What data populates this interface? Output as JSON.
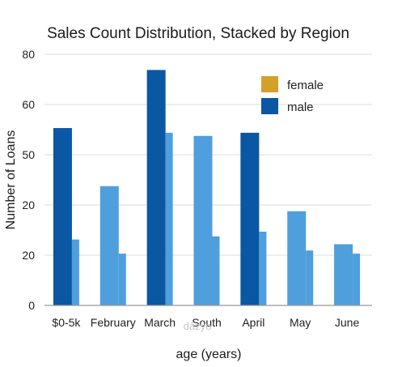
{
  "chart_data": {
    "type": "bar",
    "title": "Sales Count Distribution, Stacked by Region",
    "xlabel": "age (years)",
    "ylabel": "Number of Loans",
    "y_tick_labels": [
      "0",
      "20",
      "20",
      "50",
      "60",
      "80"
    ],
    "ylim": [
      0,
      80
    ],
    "categories": [
      "$0-5k",
      "February",
      "March",
      "South",
      "April",
      "May",
      "June"
    ],
    "series": [
      {
        "name": "male",
        "values": [
          56.5,
          0,
          75,
          0,
          55,
          0,
          0
        ]
      },
      {
        "name": "male",
        "values": [
          0,
          38,
          0,
          54,
          0,
          30,
          19.5
        ]
      },
      {
        "name": "female",
        "values": [
          21,
          16.5,
          55,
          22,
          23.5,
          17.5,
          16.5
        ]
      }
    ],
    "legend": {
      "position": "top-right",
      "entries": [
        "female",
        "male"
      ]
    },
    "grid": true,
    "watermark": "dāzyo"
  },
  "colors": {
    "dark_blue": "#0a57a3",
    "light_blue": "#4f9fdc",
    "female": "#d4a02a",
    "grid": "#dddddd",
    "axis": "#999999"
  }
}
